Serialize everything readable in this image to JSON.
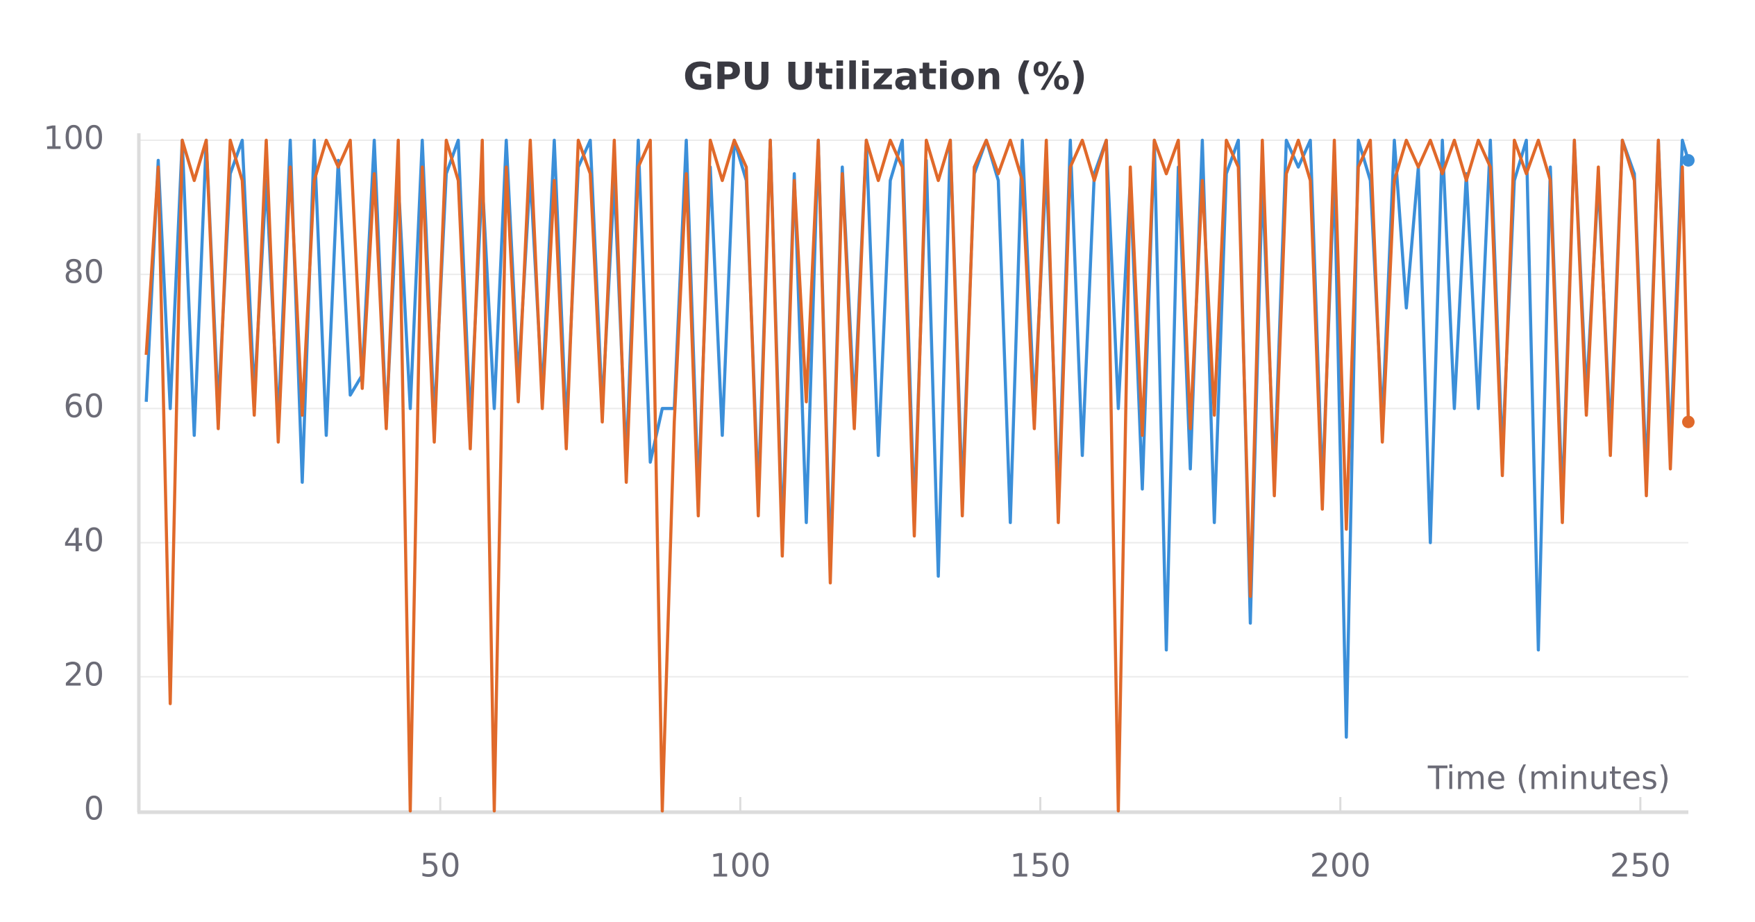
{
  "chart_data": {
    "type": "line",
    "title": "GPU Utilization (%)",
    "x_label": "Time (minutes)",
    "x": [
      1,
      3,
      5,
      7,
      9,
      11,
      13,
      15,
      17,
      19,
      21,
      23,
      25,
      27,
      29,
      31,
      33,
      35,
      37,
      39,
      41,
      43,
      45,
      47,
      49,
      51,
      53,
      55,
      57,
      59,
      61,
      63,
      65,
      67,
      69,
      71,
      73,
      75,
      77,
      79,
      81,
      83,
      85,
      87,
      89,
      91,
      93,
      95,
      97,
      99,
      101,
      103,
      105,
      107,
      109,
      111,
      113,
      115,
      117,
      119,
      121,
      123,
      125,
      127,
      129,
      131,
      133,
      135,
      137,
      139,
      141,
      143,
      145,
      147,
      149,
      151,
      153,
      155,
      157,
      159,
      161,
      163,
      165,
      167,
      169,
      171,
      173,
      175,
      177,
      179,
      181,
      183,
      185,
      187,
      189,
      191,
      193,
      195,
      197,
      199,
      201,
      203,
      205,
      207,
      209,
      211,
      213,
      215,
      217,
      219,
      221,
      223,
      225,
      227,
      229,
      231,
      233,
      235,
      237,
      239,
      241,
      243,
      245,
      247,
      249,
      251,
      253,
      255,
      257,
      258
    ],
    "series": [
      {
        "color": "#3b8fd9",
        "values": [
          61,
          97,
          60,
          100,
          56,
          100,
          60,
          95,
          100,
          62,
          94,
          58,
          100,
          49,
          100,
          56,
          97,
          62,
          65,
          100,
          58,
          94,
          60,
          100,
          58,
          95,
          100,
          58,
          94,
          60,
          100,
          64,
          95,
          62,
          100,
          57,
          96,
          100,
          60,
          94,
          52,
          100,
          52,
          60,
          60,
          100,
          47,
          96,
          56,
          100,
          94,
          47,
          100,
          41,
          95,
          43,
          100,
          37,
          96,
          60,
          100,
          53,
          94,
          100,
          44,
          97,
          35,
          100,
          47,
          95,
          100,
          94,
          43,
          100,
          60,
          96,
          46,
          100,
          53,
          95,
          100,
          60,
          94,
          48,
          100,
          24,
          96,
          51,
          100,
          43,
          95,
          100,
          28,
          94,
          50,
          100,
          96,
          100,
          48,
          95,
          11,
          100,
          94,
          58,
          100,
          75,
          96,
          40,
          100,
          60,
          95,
          60,
          100,
          53,
          94,
          100,
          24,
          96,
          46,
          100,
          62,
          94,
          56,
          100,
          95,
          50,
          100,
          54,
          100,
          97
        ]
      },
      {
        "color": "#e0692a",
        "values": [
          68,
          96,
          16,
          100,
          94,
          100,
          57,
          100,
          94,
          59,
          100,
          55,
          96,
          59,
          94,
          100,
          96,
          100,
          63,
          95,
          57,
          100,
          0,
          96,
          55,
          100,
          94,
          54,
          100,
          0,
          96,
          61,
          100,
          60,
          94,
          54,
          100,
          95,
          58,
          100,
          49,
          96,
          100,
          0,
          58,
          95,
          44,
          100,
          94,
          100,
          96,
          44,
          100,
          38,
          94,
          61,
          100,
          34,
          95,
          57,
          100,
          94,
          100,
          96,
          41,
          100,
          94,
          100,
          44,
          96,
          100,
          95,
          100,
          94,
          57,
          100,
          43,
          96,
          100,
          94,
          100,
          0,
          96,
          56,
          100,
          95,
          100,
          57,
          94,
          59,
          100,
          96,
          32,
          100,
          47,
          95,
          100,
          94,
          45,
          100,
          42,
          96,
          100,
          55,
          94,
          100,
          96,
          100,
          95,
          100,
          94,
          100,
          96,
          50,
          100,
          95,
          100,
          94,
          43,
          100,
          59,
          96,
          53,
          100,
          94,
          47,
          100,
          51,
          96,
          58
        ]
      }
    ],
    "xlim": [
      0,
      258
    ],
    "xticks": [
      50,
      100,
      150,
      200,
      250
    ],
    "ylim": [
      0,
      100
    ],
    "yticks": [
      0,
      20,
      40,
      60,
      80,
      100
    ],
    "grid": true
  }
}
